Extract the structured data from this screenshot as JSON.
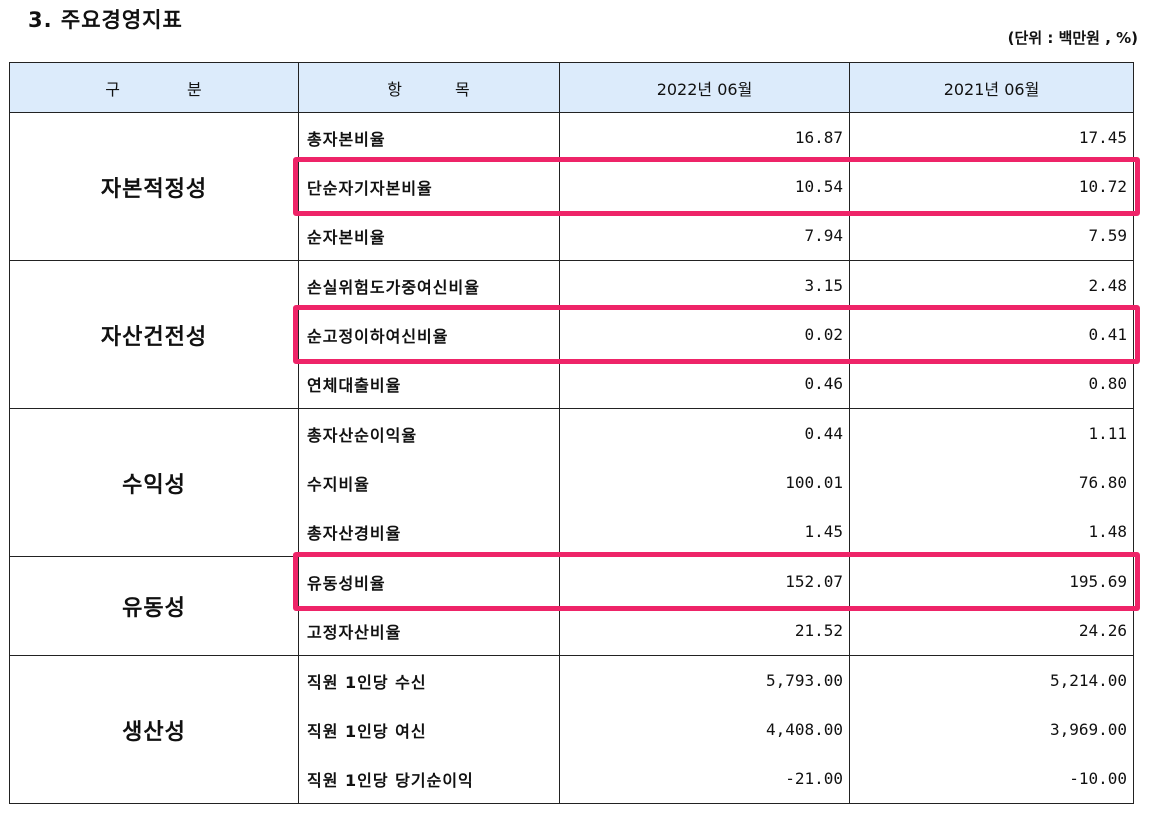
{
  "title": "3. 주요경영지표",
  "unit": "(단위 : 백만원 , %)",
  "header": {
    "col1": [
      "구",
      "분"
    ],
    "col2": [
      "항",
      "목"
    ],
    "col3": "2022년  06월",
    "col4": "2021년  06월"
  },
  "highlight_color": "#ee2468",
  "groups": [
    {
      "name": "자본적정성",
      "rows": [
        {
          "item": "총자본비율",
          "v2022": "16.87",
          "v2021": "17.45"
        },
        {
          "item": "단순자기자본비율",
          "v2022": "10.54",
          "v2021": "10.72",
          "highlighted": true
        },
        {
          "item": "순자본비율",
          "v2022": "7.94",
          "v2021": "7.59"
        }
      ]
    },
    {
      "name": "자산건전성",
      "rows": [
        {
          "item": "손실위험도가중여신비율",
          "v2022": "3.15",
          "v2021": "2.48"
        },
        {
          "item": "순고정이하여신비율",
          "v2022": "0.02",
          "v2021": "0.41",
          "highlighted": true
        },
        {
          "item": "연체대출비율",
          "v2022": "0.46",
          "v2021": "0.80"
        }
      ]
    },
    {
      "name": "수익성",
      "rows": [
        {
          "item": "총자산순이익율",
          "v2022": "0.44",
          "v2021": "1.11"
        },
        {
          "item": "수지비율",
          "v2022": "100.01",
          "v2021": "76.80"
        },
        {
          "item": "총자산경비율",
          "v2022": "1.45",
          "v2021": "1.48"
        }
      ]
    },
    {
      "name": "유동성",
      "rows": [
        {
          "item": "유동성비율",
          "v2022": "152.07",
          "v2021": "195.69",
          "highlighted": true
        },
        {
          "item": "고정자산비율",
          "v2022": "21.52",
          "v2021": "24.26"
        }
      ]
    },
    {
      "name": "생산성",
      "rows": [
        {
          "item": "직원 1인당 수신",
          "v2022": "5,793.00",
          "v2021": "5,214.00"
        },
        {
          "item": "직원 1인당 여신",
          "v2022": "4,408.00",
          "v2021": "3,969.00"
        },
        {
          "item": "직원 1인당 당기순이익",
          "v2022": "-21.00",
          "v2021": "-10.00"
        }
      ]
    }
  ]
}
